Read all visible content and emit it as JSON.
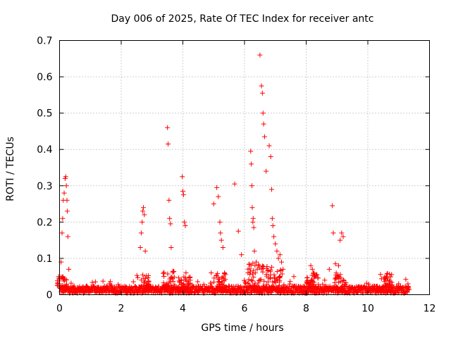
{
  "chart_data": {
    "type": "scatter",
    "title": "Day 006 of 2025, Rate Of TEC Index for receiver antc",
    "xlabel": "GPS time / hours",
    "ylabel": "ROTI / TECUs",
    "xlim": [
      0,
      12
    ],
    "ylim": [
      0,
      0.7
    ],
    "x_ticks": [
      "0",
      "2",
      "4",
      "6",
      "8",
      "10",
      "12"
    ],
    "y_ticks": [
      "0",
      "0.1",
      "0.2",
      "0.3",
      "0.4",
      "0.5",
      "0.6",
      "0.7"
    ],
    "grid": true,
    "marker": "plus",
    "color": "#ff0000",
    "series": [
      {
        "x": [
          0.05,
          0.08,
          0.1,
          0.12,
          0.15,
          0.18,
          0.2,
          0.22,
          0.24,
          0.25,
          0.27,
          0.3,
          2.62,
          2.65,
          2.68,
          2.7,
          2.72,
          2.75,
          2.78,
          3.5,
          3.52,
          3.55,
          3.57,
          3.6,
          3.62,
          3.98,
          4.0,
          4.02,
          4.05,
          4.08,
          4.1,
          4.92,
          5.0,
          5.1,
          5.15,
          5.2,
          5.22,
          5.25,
          5.3,
          5.35,
          5.68,
          5.8,
          5.9,
          6.2,
          6.22,
          6.24,
          6.25,
          6.27,
          6.28,
          6.3,
          6.32,
          6.35,
          6.38,
          6.5,
          6.55,
          6.58,
          6.6,
          6.62,
          6.65,
          6.7,
          6.8,
          6.85,
          6.88,
          6.9,
          6.92,
          6.95,
          7.0,
          7.05,
          7.1,
          7.15,
          7.2,
          7.25,
          7.6,
          8.15,
          8.2,
          8.25,
          8.3,
          8.6,
          8.75,
          8.85,
          8.88,
          8.95,
          9.05,
          9.1,
          9.15,
          9.2,
          10.6,
          10.7,
          11.0,
          11.3
        ],
        "y": [
          0.09,
          0.17,
          0.21,
          0.26,
          0.28,
          0.32,
          0.325,
          0.3,
          0.26,
          0.23,
          0.16,
          0.07,
          0.13,
          0.17,
          0.2,
          0.23,
          0.24,
          0.22,
          0.12,
          0.46,
          0.415,
          0.26,
          0.21,
          0.195,
          0.13,
          0.325,
          0.285,
          0.275,
          0.2,
          0.19,
          0.06,
          0.06,
          0.25,
          0.295,
          0.27,
          0.2,
          0.17,
          0.15,
          0.13,
          0.06,
          0.305,
          0.175,
          0.11,
          0.395,
          0.36,
          0.3,
          0.24,
          0.2,
          0.21,
          0.185,
          0.12,
          0.06,
          0.09,
          0.66,
          0.575,
          0.555,
          0.5,
          0.47,
          0.435,
          0.34,
          0.41,
          0.38,
          0.29,
          0.21,
          0.19,
          0.16,
          0.14,
          0.12,
          0.1,
          0.11,
          0.09,
          0.07,
          0.05,
          0.08,
          0.07,
          0.06,
          0.05,
          0.04,
          0.07,
          0.245,
          0.17,
          0.085,
          0.08,
          0.15,
          0.17,
          0.16,
          0.05,
          0.04,
          0.03,
          0.03
        ]
      }
    ]
  }
}
